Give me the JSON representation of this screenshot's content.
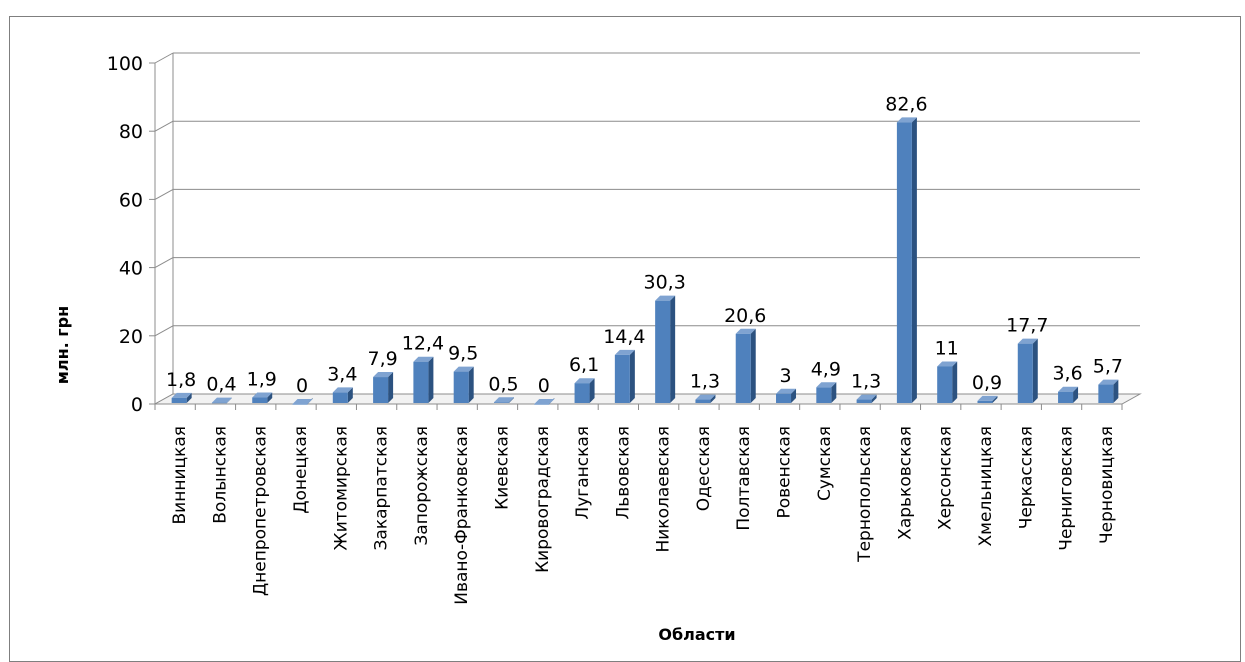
{
  "page": {
    "top_fragment": "                        [ ]"
  },
  "chart_data": {
    "type": "bar",
    "title": "",
    "xlabel": "Области",
    "ylabel": "млн. грн",
    "ylim": [
      0,
      100
    ],
    "yticks": [
      0,
      20,
      40,
      60,
      80,
      100
    ],
    "grid": true,
    "legend": "none",
    "color": "#4f81bd",
    "categories": [
      "Винницкая",
      "Волынская",
      "Днепропетровская",
      "Донецкая",
      "Житомирская",
      "Закарпатская",
      "Запорожская",
      "Ивано-Франковская",
      "Киевская",
      "Кировоградская",
      "Луганская",
      "Львовская",
      "Николаевская",
      "Одесская",
      "Полтавская",
      "Ровенская",
      "Сумская",
      "Тернопольская",
      "Харьковская",
      "Херсонская",
      "Хмельницкая",
      "Черкасская",
      "Черниговская",
      "Черновицкая"
    ],
    "values": [
      1.8,
      0.4,
      1.9,
      0,
      3.4,
      7.9,
      12.4,
      9.5,
      0.5,
      0,
      6.1,
      14.4,
      30.3,
      1.3,
      20.6,
      3,
      4.9,
      1.3,
      82.6,
      11,
      0.9,
      17.7,
      3.6,
      5.7
    ],
    "labels": [
      "1,8",
      "0,4",
      "1,9",
      "0",
      "3,4",
      "7,9",
      "12,4",
      "9,5",
      "0,5",
      "0",
      "6,1",
      "14,4",
      "30,3",
      "1,3",
      "20,6",
      "3",
      "4,9",
      "1,3",
      "82,6",
      "11",
      "0,9",
      "17,7",
      "3,6",
      "5,7"
    ]
  }
}
